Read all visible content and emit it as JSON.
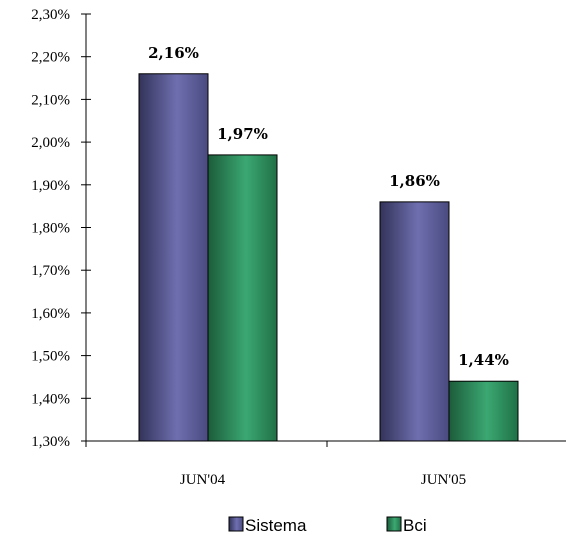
{
  "chart_data": {
    "type": "bar",
    "categories": [
      "JUN'04",
      "JUN'05"
    ],
    "series": [
      {
        "name": "Sistema",
        "values": [
          2.16,
          1.86
        ],
        "labels": [
          "2,16%",
          "1,86%"
        ],
        "color": "#5b5b96"
      },
      {
        "name": "Bci",
        "values": [
          1.97,
          1.44
        ],
        "labels": [
          "1,97%",
          "1,44%"
        ],
        "color": "#2f9460"
      }
    ],
    "ylim": [
      1.3,
      2.3
    ],
    "yticks": [
      1.3,
      1.4,
      1.5,
      1.6,
      1.7,
      1.8,
      1.9,
      2.0,
      2.1,
      2.2,
      2.3
    ],
    "ytick_labels": [
      "1,30%",
      "1,40%",
      "1,50%",
      "1,60%",
      "1,70%",
      "1,80%",
      "1,90%",
      "2,00%",
      "2,10%",
      "2,20%",
      "2,30%"
    ],
    "title": "",
    "xlabel": "",
    "ylabel": "",
    "grid": false,
    "legend_position": "bottom-center"
  }
}
